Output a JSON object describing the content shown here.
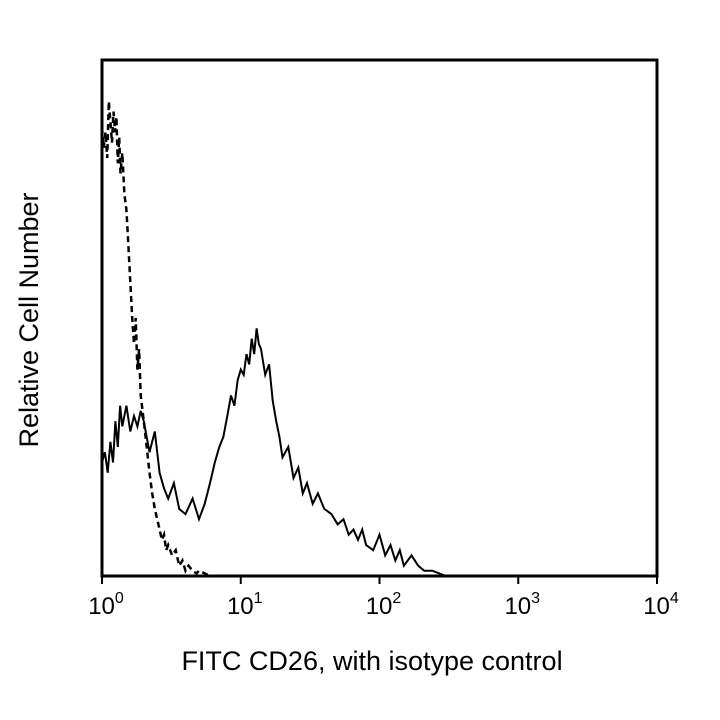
{
  "chart_data": {
    "type": "line",
    "title": "",
    "xlabel": "FITC CD26, with isotype control",
    "ylabel": "Relative Cell Number",
    "x_scale": "log",
    "xlim": [
      1,
      10000
    ],
    "ylim": [
      0,
      100
    ],
    "grid": false,
    "legend": "none",
    "x_ticks": [
      {
        "base": "10",
        "exp": "0",
        "value": 1
      },
      {
        "base": "10",
        "exp": "1",
        "value": 10
      },
      {
        "base": "10",
        "exp": "2",
        "value": 100
      },
      {
        "base": "10",
        "exp": "3",
        "value": 1000
      },
      {
        "base": "10",
        "exp": "4",
        "value": 10000
      }
    ],
    "series": [
      {
        "style": "solid",
        "color": "#000000",
        "x": [
          1.0,
          1.05,
          1.1,
          1.15,
          1.2,
          1.25,
          1.3,
          1.35,
          1.4,
          1.5,
          1.6,
          1.7,
          1.8,
          1.9,
          2.0,
          2.2,
          2.4,
          2.6,
          2.8,
          3.0,
          3.3,
          3.6,
          4.0,
          4.5,
          5.0,
          5.5,
          6.0,
          6.5,
          7.0,
          7.5,
          8.0,
          8.5,
          9.0,
          9.5,
          10.0,
          10.5,
          11.0,
          11.5,
          12.0,
          12.5,
          13.0,
          13.5,
          14.0,
          15.0,
          16.0,
          17.0,
          18.0,
          19.0,
          20.0,
          22.0,
          24.0,
          26.0,
          28.0,
          30.0,
          33.0,
          36.0,
          40.0,
          45.0,
          50.0,
          55.0,
          60.0,
          65.0,
          70.0,
          75.0,
          80.0,
          90.0,
          100.0,
          110.0,
          120.0,
          130.0,
          140.0,
          150.0,
          170.0,
          190.0,
          210.0,
          240.0,
          270.0,
          300.0
        ],
        "values": [
          22,
          24,
          20,
          26,
          22,
          30,
          25,
          33,
          29,
          33,
          28,
          31,
          29,
          32,
          30,
          24,
          28,
          20,
          17,
          15,
          18,
          13,
          12,
          15,
          11,
          14,
          18,
          22,
          25,
          27,
          31,
          35,
          33,
          38,
          40,
          39,
          43,
          41,
          46,
          43,
          48,
          45,
          44,
          39,
          41,
          34,
          30,
          27,
          23,
          25,
          19,
          21,
          16,
          18,
          14,
          16,
          13,
          12,
          10,
          11,
          8,
          9,
          7,
          9,
          6,
          5,
          8,
          4,
          6,
          3,
          5,
          2,
          4,
          2,
          1,
          1,
          0.5,
          0
        ]
      },
      {
        "style": "dashed",
        "color": "#000000",
        "x": [
          1.0,
          1.03,
          1.06,
          1.09,
          1.12,
          1.15,
          1.18,
          1.21,
          1.24,
          1.27,
          1.3,
          1.33,
          1.36,
          1.4,
          1.45,
          1.5,
          1.55,
          1.6,
          1.65,
          1.7,
          1.75,
          1.8,
          1.85,
          1.9,
          2.0,
          2.1,
          2.2,
          2.3,
          2.4,
          2.5,
          2.6,
          2.7,
          2.8,
          2.9,
          3.0,
          3.2,
          3.4,
          3.6,
          3.8,
          4.0,
          4.2,
          4.5,
          4.8,
          5.0,
          5.5,
          6.0,
          6.5
        ],
        "values": [
          87,
          83,
          86,
          81,
          92,
          88,
          84,
          90,
          86,
          89,
          80,
          85,
          78,
          82,
          74,
          71,
          64,
          57,
          50,
          45,
          50,
          40,
          44,
          35,
          30,
          25,
          20,
          16,
          13,
          11,
          9,
          7,
          8,
          5,
          6,
          4,
          5,
          2,
          3,
          1,
          2,
          1,
          0.5,
          1,
          0.5,
          0,
          0
        ]
      }
    ]
  }
}
